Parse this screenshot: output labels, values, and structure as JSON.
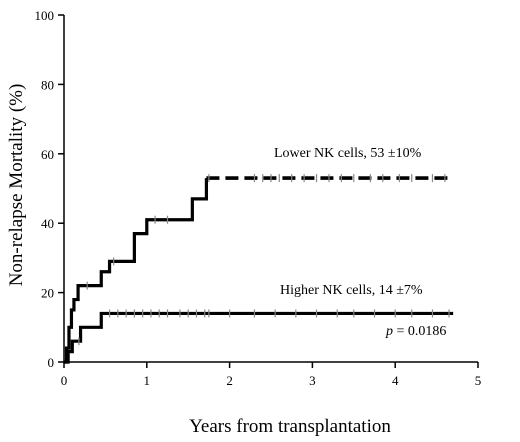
{
  "chart_data": {
    "type": "line",
    "xlabel": "Years from transplantation",
    "ylabel": "Non-relapse Mortality (%)",
    "xlim": [
      0,
      5
    ],
    "ylim": [
      0,
      100
    ],
    "x_ticks": [
      0,
      1,
      2,
      3,
      4,
      5
    ],
    "y_ticks": [
      0,
      20,
      40,
      60,
      80,
      100
    ],
    "grid": false,
    "legend": "none",
    "series": [
      {
        "name": "Lower NK cells, 53 ±10%",
        "line_style": "dashed-after-last-event",
        "color": "#000000",
        "x": [
          0,
          0.03,
          0.06,
          0.09,
          0.12,
          0.17,
          0.35,
          0.45,
          0.55,
          0.75,
          0.85,
          1.0,
          1.2,
          1.3,
          1.55,
          1.72,
          4.7
        ],
        "y": [
          0,
          4,
          10,
          15,
          18,
          22,
          22,
          26,
          29,
          29,
          37,
          41,
          41,
          41,
          47,
          53,
          53
        ],
        "censor_x": [
          0.28,
          0.6,
          1.1,
          1.25,
          1.75,
          2.3,
          2.4,
          2.5,
          2.6,
          2.75,
          2.9,
          3.05,
          3.2,
          3.35,
          3.5,
          3.7,
          3.85,
          4.05,
          4.2,
          4.45,
          4.6
        ]
      },
      {
        "name": "Higher NK cells, 14 ±7%",
        "line_style": "solid",
        "color": "#000000",
        "x": [
          0,
          0.05,
          0.1,
          0.2,
          0.45,
          4.7
        ],
        "y": [
          0,
          3,
          6,
          10,
          14,
          14
        ],
        "censor_x": [
          0.18,
          0.55,
          0.65,
          0.75,
          0.85,
          0.95,
          1.05,
          1.15,
          1.25,
          1.4,
          1.5,
          1.6,
          1.7,
          1.75,
          2.0,
          2.3,
          2.55,
          2.8,
          3.05,
          3.3,
          3.5,
          3.75,
          4.0,
          4.2,
          4.45,
          4.65
        ]
      }
    ],
    "annotations": {
      "lower_label": "Lower NK cells, 53 ±10%",
      "higher_label": "Higher NK cells, 14 ±7%",
      "p_prefix": "p",
      "p_value": " = 0.0186"
    }
  }
}
